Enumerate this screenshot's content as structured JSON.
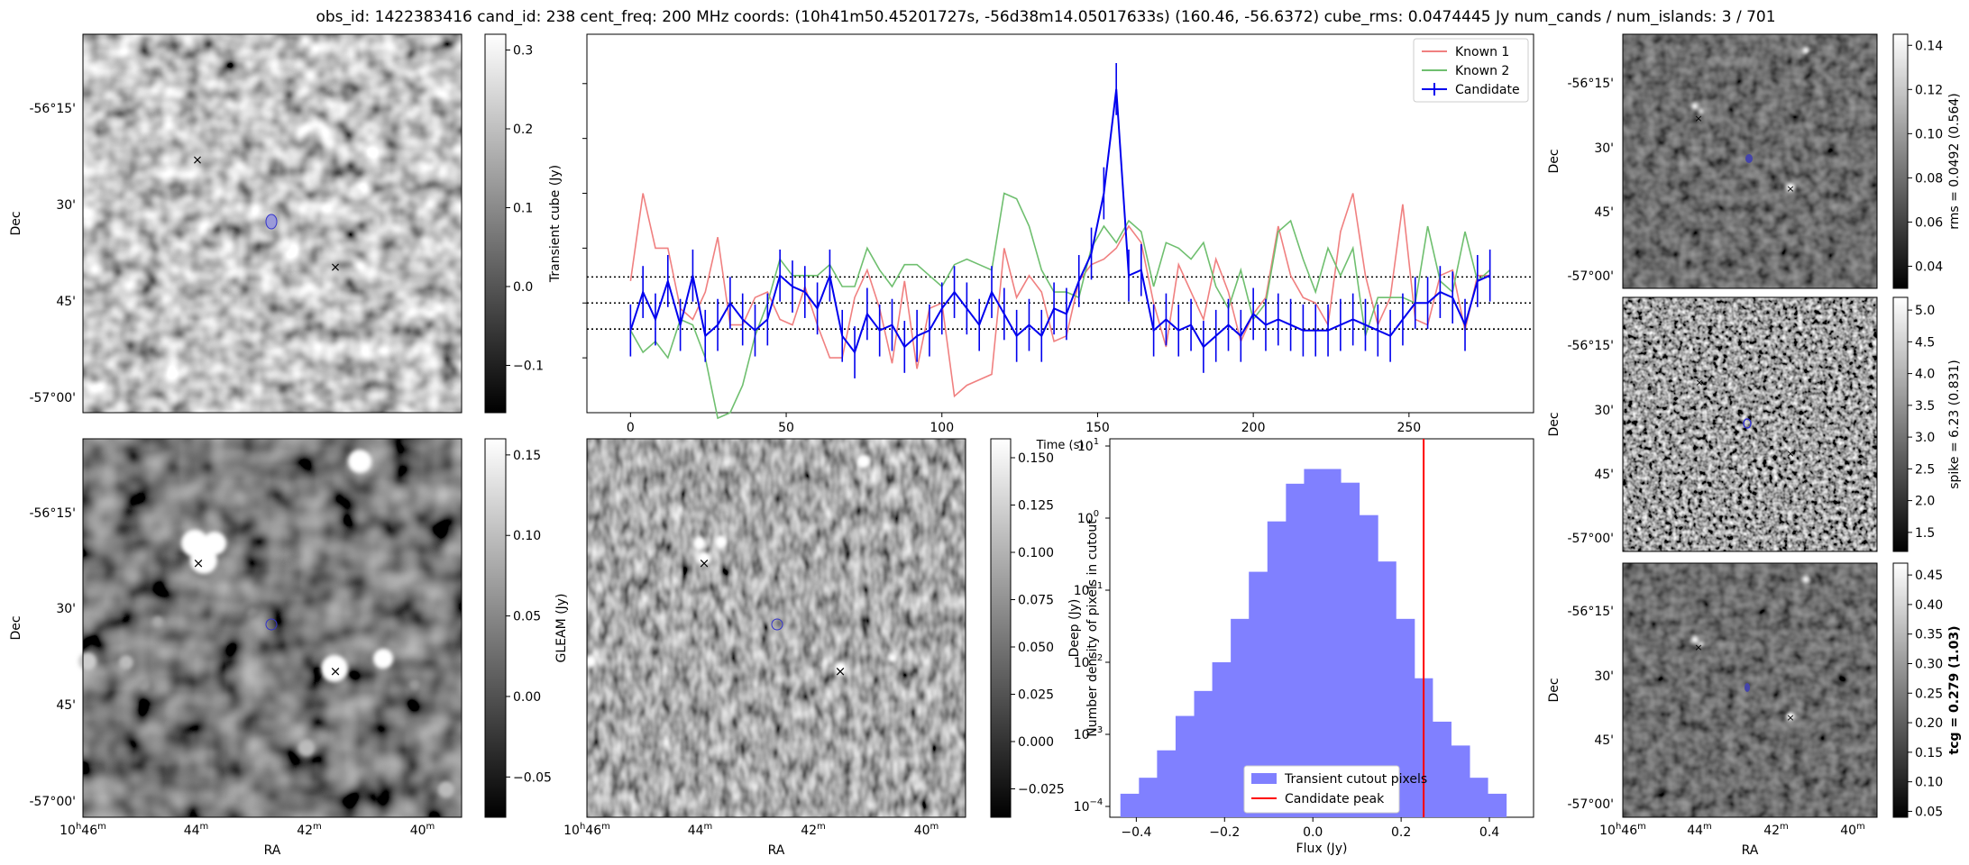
{
  "title": "obs_id: 1422383416 cand_id: 238 cent_freq: 200 MHz coords: (10h41m50.45201727s, -56d38m14.05017633s) (160.46, -56.6372) cube_rms: 0.0474445 Jy num_cands / num_islands: 3 / 701",
  "axis_labels": {
    "ra": "RA",
    "dec": "Dec"
  },
  "dec_ticks": [
    "-56°15'",
    "30'",
    "45'",
    "-57°00'"
  ],
  "ra_ticks": [
    {
      "h": "10",
      "hs": "h",
      "m": "46",
      "ms": "m"
    },
    {
      "h": "",
      "hs": "",
      "m": "44",
      "ms": "m"
    },
    {
      "h": "",
      "hs": "",
      "m": "42",
      "ms": "m"
    },
    {
      "h": "",
      "hs": "",
      "m": "40",
      "ms": "m"
    }
  ],
  "marker_colors": {
    "known1": "#d62728",
    "known2": "#2ca02c",
    "candidate": "#0000cc"
  },
  "panels": {
    "transient_image": {
      "colorbar_label": "Transient cube (Jy)",
      "cbar_ticks": [
        "0.3",
        "0.2",
        "0.1",
        "0.0",
        "−0.1"
      ],
      "cbar_values": [
        0.3,
        0.2,
        0.1,
        0.0,
        -0.1
      ],
      "cbar_range": [
        -0.16,
        0.32
      ]
    },
    "deep_image": {
      "colorbar_label": "Deep (Jy)",
      "cbar_ticks": [
        "0.15",
        "0.10",
        "0.05",
        "0.00",
        "−0.05"
      ],
      "cbar_values": [
        0.15,
        0.1,
        0.05,
        0.0,
        -0.05
      ],
      "cbar_range": [
        -0.075,
        0.16
      ]
    },
    "gleam_image": {
      "colorbar_label": "GLEAM (Jy)",
      "cbar_ticks": [
        "0.150",
        "0.125",
        "0.100",
        "0.075",
        "0.050",
        "0.025",
        "0.000",
        "−0.025"
      ],
      "cbar_values": [
        0.15,
        0.125,
        0.1,
        0.075,
        0.05,
        0.025,
        0.0,
        -0.025
      ],
      "cbar_range": [
        -0.04,
        0.16
      ]
    },
    "rms_image": {
      "colorbar_label": "rms = 0.0492 (0.564)",
      "cbar_ticks": [
        "0.14",
        "0.12",
        "0.10",
        "0.08",
        "0.06",
        "0.04"
      ],
      "cbar_values": [
        0.14,
        0.12,
        0.1,
        0.08,
        0.06,
        0.04
      ],
      "cbar_range": [
        0.03,
        0.145
      ]
    },
    "spike_image": {
      "colorbar_label": "spike = 6.23 (0.831)",
      "cbar_ticks": [
        "5.0",
        "4.5",
        "4.0",
        "3.5",
        "3.0",
        "2.5",
        "2.0",
        "1.5"
      ],
      "cbar_values": [
        5.0,
        4.5,
        4.0,
        3.5,
        3.0,
        2.5,
        2.0,
        1.5
      ],
      "cbar_range": [
        1.2,
        5.2
      ]
    },
    "tcg_image": {
      "colorbar_label": "tcg = 0.279 (1.03)",
      "cbar_ticks": [
        "0.45",
        "0.40",
        "0.35",
        "0.30",
        "0.25",
        "0.20",
        "0.15",
        "0.10",
        "0.05"
      ],
      "cbar_values": [
        0.45,
        0.4,
        0.35,
        0.3,
        0.25,
        0.2,
        0.15,
        0.1,
        0.05
      ],
      "cbar_range": [
        0.04,
        0.47
      ]
    }
  },
  "chart_data": [
    {
      "type": "line",
      "name": "lightcurve",
      "xlabel": "Time (s)",
      "ylabel": "",
      "xlim": [
        -14,
        290
      ],
      "ylim": [
        -0.2,
        0.49
      ],
      "xticks": [
        0,
        50,
        100,
        150,
        200,
        250
      ],
      "xtick_labels": [
        "0",
        "50",
        "100",
        "150",
        "200",
        "250"
      ],
      "hlines": [
        0.0474445,
        0.0,
        -0.0474445
      ],
      "x": [
        0,
        4,
        8,
        12,
        16,
        20,
        24,
        28,
        32,
        36,
        40,
        44,
        48,
        52,
        56,
        60,
        64,
        68,
        72,
        76,
        80,
        84,
        88,
        92,
        96,
        100,
        104,
        108,
        112,
        116,
        120,
        124,
        128,
        132,
        136,
        140,
        144,
        148,
        152,
        156,
        160,
        164,
        168,
        172,
        176,
        180,
        184,
        188,
        192,
        196,
        200,
        204,
        208,
        212,
        216,
        220,
        224,
        228,
        232,
        236,
        240,
        244,
        248,
        252,
        256,
        260,
        264,
        268,
        272,
        276
      ],
      "series": [
        {
          "name": "Known 1",
          "color": "#f08080",
          "values": [
            0.04,
            0.2,
            0.1,
            0.1,
            -0.01,
            -0.03,
            0.02,
            0.12,
            -0.04,
            -0.04,
            0.01,
            0.02,
            -0.03,
            -0.04,
            0.03,
            -0.04,
            -0.1,
            -0.1,
            0.01,
            0.06,
            -0.01,
            -0.11,
            0.04,
            -0.12,
            -0.01,
            0.0,
            -0.17,
            -0.15,
            -0.14,
            -0.13,
            0.1,
            0.01,
            0.05,
            0.02,
            -0.07,
            -0.06,
            0.04,
            0.07,
            0.08,
            0.1,
            0.14,
            0.11,
            0.0,
            -0.08,
            0.07,
            0.02,
            -0.03,
            0.08,
            0.02,
            -0.07,
            -0.02,
            0.01,
            0.14,
            0.05,
            0.01,
            0.0,
            -0.04,
            0.13,
            0.2,
            0.05,
            -0.04,
            0.01,
            0.18,
            -0.03,
            -0.04,
            0.05,
            0.06,
            -0.05,
            0.05,
            0.05
          ]
        },
        {
          "name": "Known 2",
          "color": "#6fbf6f",
          "values": [
            -0.05,
            -0.09,
            -0.07,
            -0.1,
            -0.03,
            -0.04,
            -0.1,
            -0.21,
            -0.2,
            -0.15,
            -0.06,
            0.0,
            0.08,
            0.05,
            0.05,
            0.05,
            0.07,
            0.03,
            0.03,
            0.1,
            0.06,
            0.03,
            0.07,
            0.07,
            0.05,
            0.03,
            0.07,
            0.08,
            0.07,
            0.06,
            0.2,
            0.19,
            0.14,
            0.06,
            0.02,
            0.02,
            0.01,
            0.1,
            0.14,
            0.11,
            0.15,
            0.13,
            0.03,
            0.11,
            0.1,
            0.08,
            0.11,
            0.03,
            -0.01,
            0.06,
            -0.03,
            0.0,
            0.13,
            0.15,
            0.08,
            0.02,
            0.1,
            0.05,
            0.1,
            -0.06,
            0.01,
            0.01,
            0.01,
            0.0,
            0.14,
            0.04,
            0.02,
            0.13,
            0.04,
            0.06
          ]
        },
        {
          "name": "Candidate",
          "color": "#0000ee",
          "values": [
            -0.05,
            0.02,
            -0.03,
            0.04,
            -0.04,
            0.05,
            -0.06,
            -0.04,
            0.0,
            -0.03,
            -0.05,
            -0.03,
            0.05,
            0.03,
            0.02,
            -0.01,
            0.05,
            -0.06,
            -0.09,
            -0.02,
            -0.05,
            -0.04,
            -0.08,
            -0.06,
            -0.05,
            -0.01,
            0.02,
            -0.01,
            -0.04,
            0.02,
            -0.02,
            -0.06,
            -0.04,
            -0.06,
            -0.01,
            -0.02,
            0.04,
            0.09,
            0.2,
            0.39,
            0.05,
            0.06,
            -0.05,
            -0.03,
            -0.05,
            -0.04,
            -0.08,
            -0.06,
            -0.04,
            -0.06,
            -0.02,
            -0.04,
            -0.03,
            -0.04,
            -0.05,
            -0.05,
            -0.05,
            -0.04,
            -0.03,
            -0.04,
            -0.05,
            -0.06,
            -0.03,
            0.0,
            0.0,
            0.02,
            0.01,
            -0.04,
            0.04,
            0.05
          ],
          "error": 0.0474445
        }
      ],
      "legend": [
        "Known 1",
        "Known 2",
        "Candidate"
      ],
      "legend_position": "top-right"
    },
    {
      "type": "bar",
      "name": "histogram",
      "xlabel": "Flux (Jy)",
      "ylabel": "Number density of pixels in cutout",
      "yscale": "log",
      "xlim": [
        -0.46,
        0.5
      ],
      "ylim_log10": [
        -4.15,
        1.1
      ],
      "xticks": [
        -0.4,
        -0.2,
        0.0,
        0.2,
        0.4
      ],
      "xtick_labels": [
        "−0.4",
        "−0.2",
        "0.0",
        "0.2",
        "0.4"
      ],
      "yticks_log10": [
        -4,
        -3,
        -2,
        -1,
        0,
        1
      ],
      "bin_edges": [
        -0.436,
        -0.394,
        -0.353,
        -0.311,
        -0.269,
        -0.228,
        -0.186,
        -0.145,
        -0.103,
        -0.061,
        -0.02,
        0.022,
        0.063,
        0.105,
        0.147,
        0.188,
        0.23,
        0.271,
        0.313,
        0.355,
        0.396,
        0.438
      ],
      "values": [
        0.00015,
        0.00025,
        0.0006,
        0.0018,
        0.004,
        0.01,
        0.04,
        0.18,
        0.9,
        3.0,
        4.8,
        4.8,
        3.1,
        1.1,
        0.25,
        0.04,
        0.006,
        0.0015,
        0.0007,
        0.00025,
        0.00015
      ],
      "bar_color": "#8080ff",
      "candidate_peak": 0.251,
      "legend": [
        "Transient cutout pixels",
        "Candidate peak"
      ],
      "legend_position": "bottom-center"
    }
  ]
}
